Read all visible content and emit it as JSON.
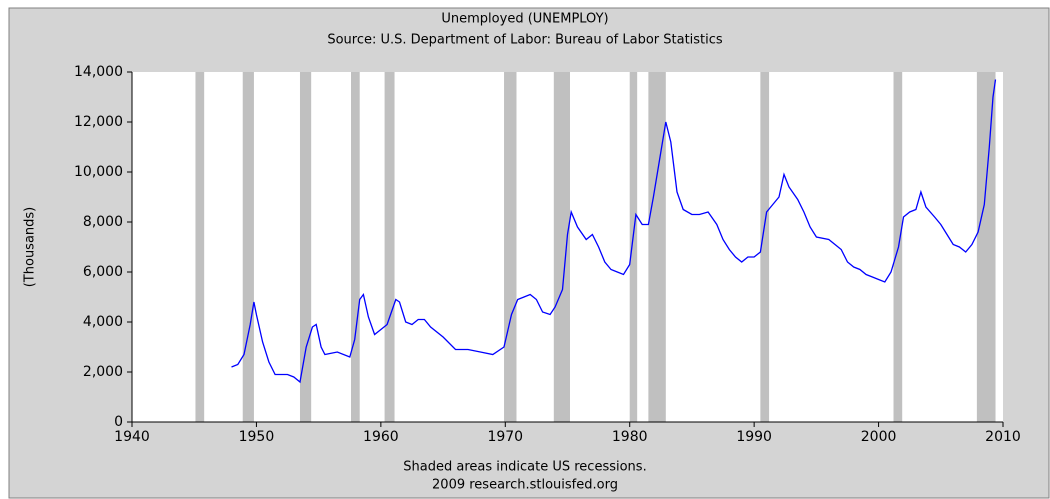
{
  "chart_data": {
    "type": "line",
    "title": "Unemployed (UNEMPLOY)",
    "subtitle": "Source: U.S. Department of Labor: Bureau of Labor Statistics",
    "y_label": "(Thousands)",
    "notes": [
      "Shaded areas indicate US recessions.",
      "2009 research.stlouisfed.org"
    ],
    "xlim": [
      1940,
      2010
    ],
    "xticks": [
      1940,
      1950,
      1960,
      1970,
      1980,
      1990,
      2000,
      2010
    ],
    "ylim": [
      0,
      14000
    ],
    "yticks": [
      0,
      {
        "value": 2000,
        "label": "2,000"
      },
      {
        "value": 4000,
        "label": "4,000"
      },
      {
        "value": 6000,
        "label": "6,000"
      },
      {
        "value": 8000,
        "label": "8,000"
      },
      {
        "value": 10000,
        "label": "10,000"
      },
      {
        "value": 12000,
        "label": "12,000"
      },
      {
        "value": 14000,
        "label": "14,000"
      }
    ],
    "recession_color": "#c0c0c0",
    "recessions": [
      [
        1945.1,
        1945.8
      ],
      [
        1948.9,
        1949.8
      ],
      [
        1953.5,
        1954.4
      ],
      [
        1957.6,
        1958.3
      ],
      [
        1960.3,
        1961.1
      ],
      [
        1969.9,
        1970.9
      ],
      [
        1973.9,
        1975.2
      ],
      [
        1980.0,
        1980.6
      ],
      [
        1981.5,
        1982.9
      ],
      [
        1990.5,
        1991.2
      ],
      [
        2001.2,
        2001.9
      ],
      [
        2007.9,
        2009.4
      ]
    ],
    "x": [
      1948.0,
      1948.5,
      1949.0,
      1949.5,
      1949.8,
      1950.0,
      1950.5,
      1951.0,
      1951.5,
      1952.0,
      1952.5,
      1953.0,
      1953.5,
      1954.0,
      1954.5,
      1954.8,
      1955.2,
      1955.5,
      1956.5,
      1957.5,
      1957.9,
      1958.3,
      1958.6,
      1959.0,
      1959.5,
      1960.0,
      1960.5,
      1961.2,
      1961.5,
      1962.0,
      1962.5,
      1963.0,
      1963.5,
      1964.0,
      1965.0,
      1966.0,
      1967.0,
      1968.0,
      1969.0,
      1969.9,
      1970.5,
      1971.0,
      1971.5,
      1972.0,
      1972.5,
      1973.0,
      1973.6,
      1974.0,
      1974.6,
      1975.0,
      1975.3,
      1975.8,
      1976.5,
      1977.0,
      1977.5,
      1978.0,
      1978.5,
      1979.0,
      1979.5,
      1980.0,
      1980.5,
      1981.0,
      1981.5,
      1981.9,
      1982.4,
      1982.9,
      1983.3,
      1983.8,
      1984.3,
      1985.0,
      1985.6,
      1986.3,
      1987.0,
      1987.5,
      1988.0,
      1988.5,
      1989.0,
      1989.5,
      1990.0,
      1990.5,
      1991.0,
      1991.5,
      1992.0,
      1992.4,
      1992.8,
      1993.5,
      1994.0,
      1994.5,
      1995.0,
      1996.0,
      1996.5,
      1997.0,
      1997.5,
      1998.0,
      1998.5,
      1999.0,
      1999.5,
      2000.0,
      2000.5,
      2001.0,
      2001.6,
      2002.0,
      2002.5,
      2003.0,
      2003.4,
      2003.8,
      2004.5,
      2005.0,
      2005.5,
      2006.0,
      2006.5,
      2007.0,
      2007.5,
      2008.0,
      2008.5,
      2008.9,
      2009.2,
      2009.4
    ],
    "series": [
      {
        "name": "Unemployed",
        "color": "#0000ff",
        "values": [
          2200,
          2300,
          2700,
          3900,
          4800,
          4300,
          3200,
          2400,
          1900,
          1900,
          1900,
          1800,
          1600,
          3000,
          3800,
          3900,
          3000,
          2700,
          2800,
          2600,
          3300,
          4900,
          5100,
          4200,
          3500,
          3700,
          3900,
          4900,
          4800,
          4000,
          3900,
          4100,
          4100,
          3800,
          3400,
          2900,
          2900,
          2800,
          2700,
          3000,
          4300,
          4900,
          5000,
          5100,
          4900,
          4400,
          4300,
          4600,
          5300,
          7500,
          8400,
          7800,
          7300,
          7500,
          7000,
          6400,
          6100,
          6000,
          5900,
          6300,
          8300,
          7900,
          7900,
          9000,
          10500,
          12000,
          11200,
          9200,
          8500,
          8300,
          8300,
          8400,
          7900,
          7300,
          6900,
          6600,
          6400,
          6600,
          6600,
          6800,
          8400,
          8700,
          9000,
          9900,
          9400,
          8900,
          8400,
          7800,
          7400,
          7300,
          7100,
          6900,
          6400,
          6200,
          6100,
          5900,
          5800,
          5700,
          5600,
          6000,
          7000,
          8200,
          8400,
          8500,
          9200,
          8600,
          8200,
          7900,
          7500,
          7100,
          7000,
          6800,
          7100,
          7600,
          8700,
          11000,
          13000,
          13700
        ]
      }
    ]
  }
}
